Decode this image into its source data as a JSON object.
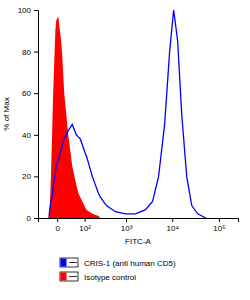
{
  "chart_data": {
    "type": "line",
    "x_label": "FITC-A",
    "y_label": "% of Max",
    "log": "x",
    "legend": "bottom",
    "xlim": [
      -55,
      256000
    ],
    "xticks": [
      0,
      {
        "value": 100,
        "label": "10²"
      },
      {
        "value": 1000,
        "label": "10³"
      },
      {
        "value": 10000,
        "label": "10⁴"
      },
      {
        "value": 100000,
        "label": "10⁵"
      }
    ],
    "ylim": [
      0,
      100
    ],
    "yticks": [
      0,
      20,
      40,
      60,
      80,
      100
    ],
    "x": [
      -17.5,
      -16.6,
      -14.7,
      -12.6,
      -10.2,
      -7.7,
      -3.3,
      -1.7,
      1.8,
      7.6,
      9.8,
      14.5,
      25.3,
      38.4,
      54.5,
      63.8,
      74.1,
      104.7,
      111.7,
      162,
      230,
      258,
      359,
      580,
      972,
      1617,
      2670,
      3790,
      5106,
      6885,
      8817,
      10756,
      13118,
      15998,
      20480,
      26270,
      35280,
      52465
    ],
    "series": [
      {
        "name": "CRIS-1 (anti human CD5)",
        "type": "line",
        "color": "#0000ff",
        "values": [
          0,
          2,
          5,
          8,
          10,
          15,
          22,
          25,
          28,
          33,
          35,
          38,
          42,
          45,
          40,
          39,
          38,
          31,
          30,
          20,
          12,
          10,
          6,
          3,
          2,
          2,
          4,
          8,
          20,
          45,
          80,
          100,
          85,
          50,
          20,
          6,
          2,
          0
        ]
      },
      {
        "name": "Isotype control",
        "type": "area",
        "color": "#ff0000",
        "values": [
          0,
          0,
          8,
          20,
          38,
          60,
          90,
          95,
          97,
          85,
          78,
          60,
          40,
          25,
          16,
          12,
          10,
          5,
          4,
          2,
          1,
          0,
          null,
          null,
          null,
          null,
          null,
          null,
          null,
          null,
          null,
          null,
          null,
          null,
          null,
          null,
          null,
          null
        ]
      }
    ]
  }
}
